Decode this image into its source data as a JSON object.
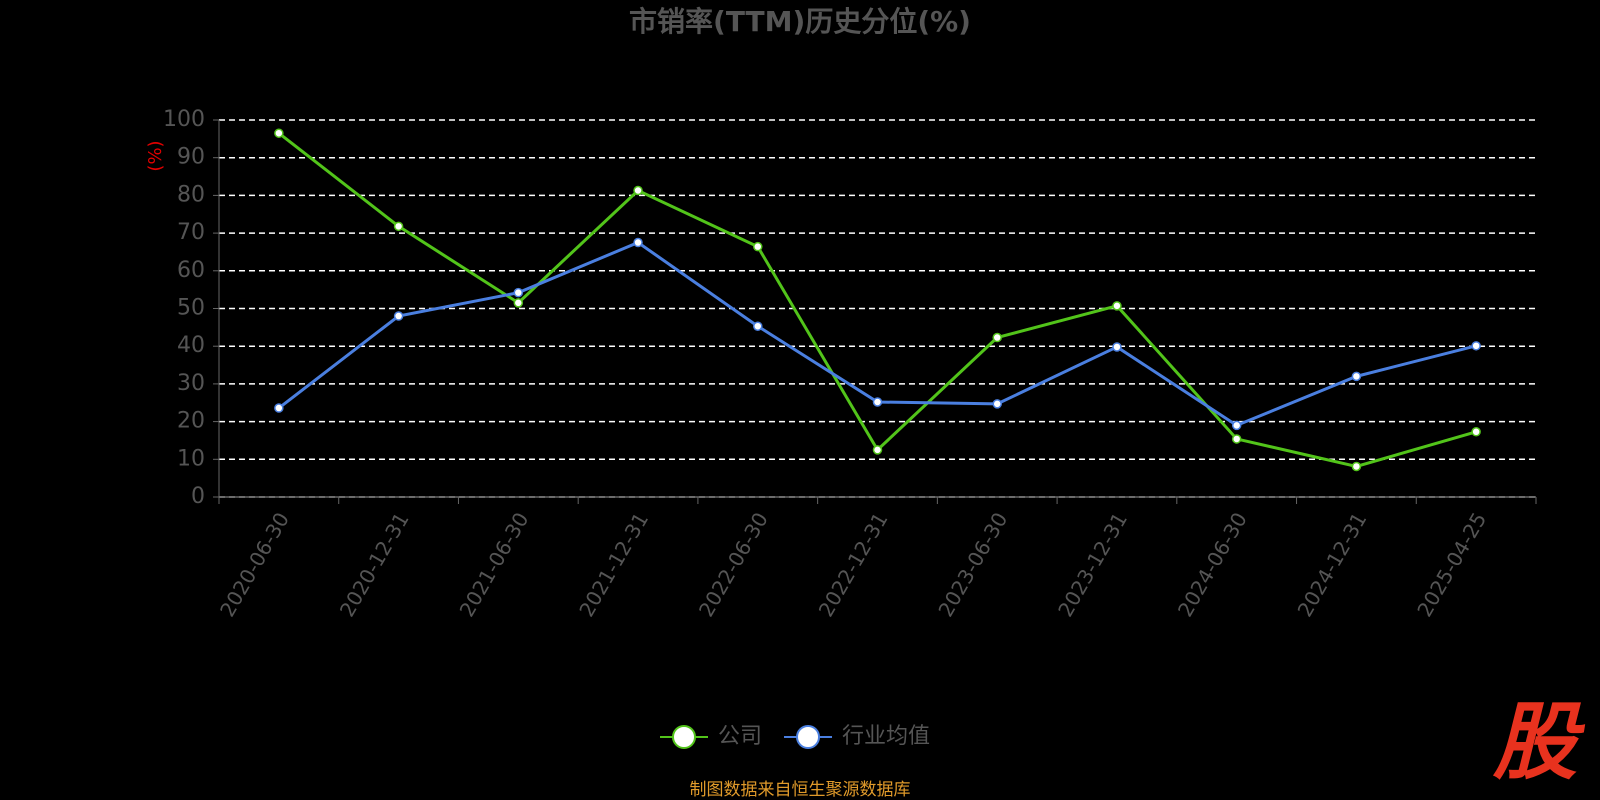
{
  "chart_data": {
    "type": "line",
    "title": "市销率(TTM)历史分位(%)",
    "y_label": "(%)",
    "categories": [
      "2020-06-30",
      "2020-12-31",
      "2021-06-30",
      "2021-12-31",
      "2022-06-30",
      "2022-12-31",
      "2023-06-30",
      "2023-12-31",
      "2024-06-30",
      "2024-12-31",
      "2025-04-25"
    ],
    "series": [
      {
        "name": "公司",
        "color": "#52c41a",
        "values": [
          96.5,
          71.8,
          51.5,
          81.3,
          66.4,
          12.5,
          42.3,
          50.7,
          15.4,
          8.1,
          17.3
        ]
      },
      {
        "name": "行业均值",
        "color": "#4a7fe0",
        "values": [
          23.6,
          48,
          54.2,
          67.5,
          45.3,
          25.2,
          24.7,
          39.8,
          19,
          32,
          40.1
        ]
      }
    ],
    "ylim": [
      0,
      100
    ],
    "yticks": [
      0,
      10,
      20,
      30,
      40,
      50,
      60,
      70,
      80,
      90,
      100
    ],
    "grid": true,
    "source": "制图数据来自恒生聚源数据库",
    "logo": "股"
  }
}
